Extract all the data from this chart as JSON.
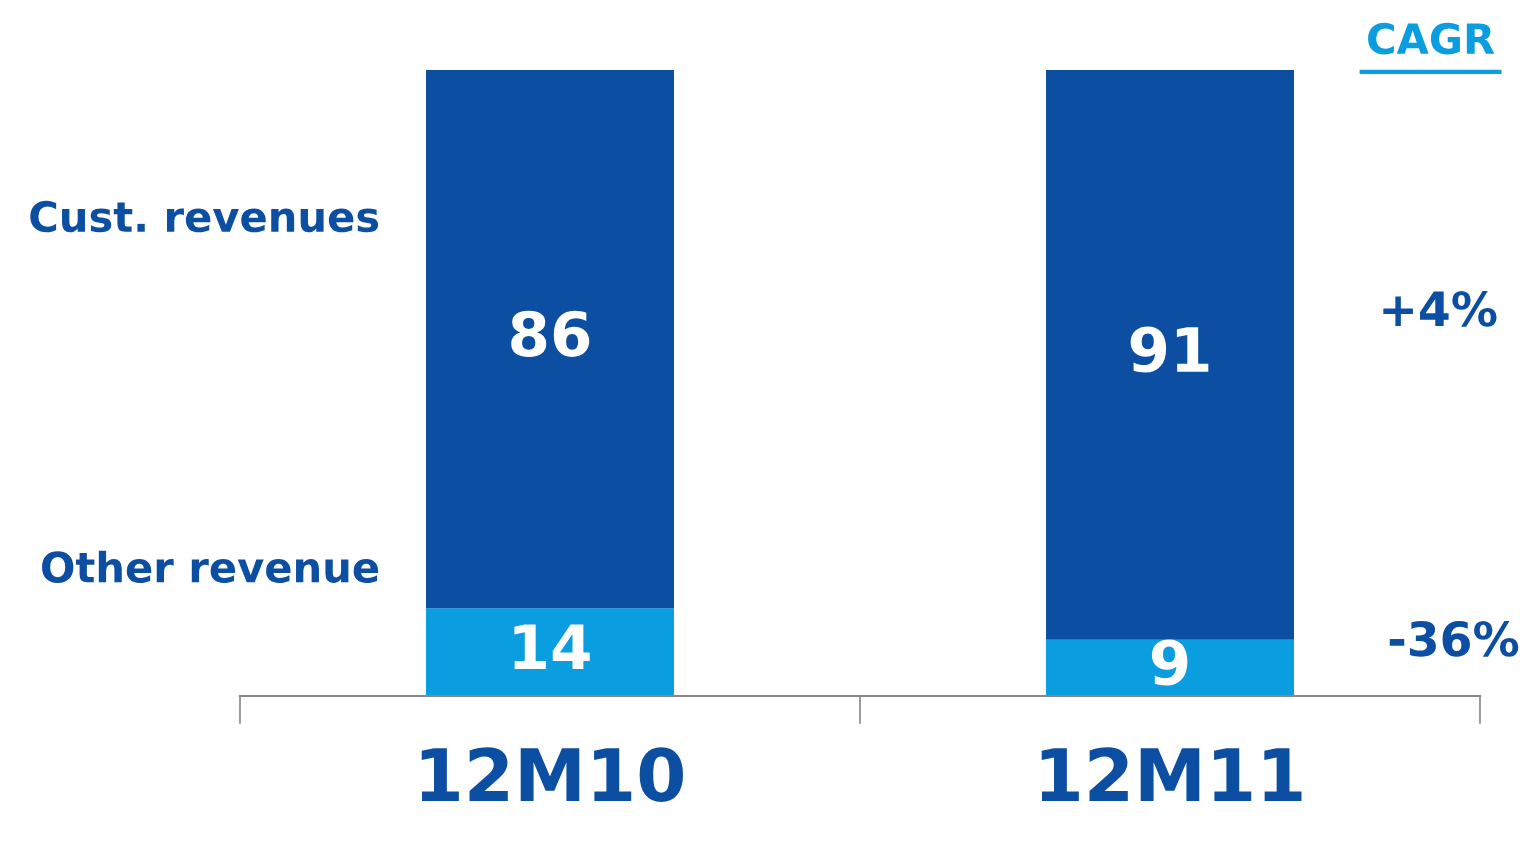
{
  "chart_data": {
    "type": "bar",
    "stacked": true,
    "categories": [
      "12M10",
      "12M11"
    ],
    "series": [
      {
        "name": "Other revenue",
        "color": "#0a9de0",
        "values": [
          14,
          9
        ]
      },
      {
        "name": "Cust. revenues",
        "color": "#0b4ea2",
        "values": [
          86,
          91
        ]
      }
    ],
    "data_labels": true,
    "grid": false,
    "legend": false,
    "annotations": [
      "CAGR",
      "+4%",
      "-36%"
    ]
  }
}
